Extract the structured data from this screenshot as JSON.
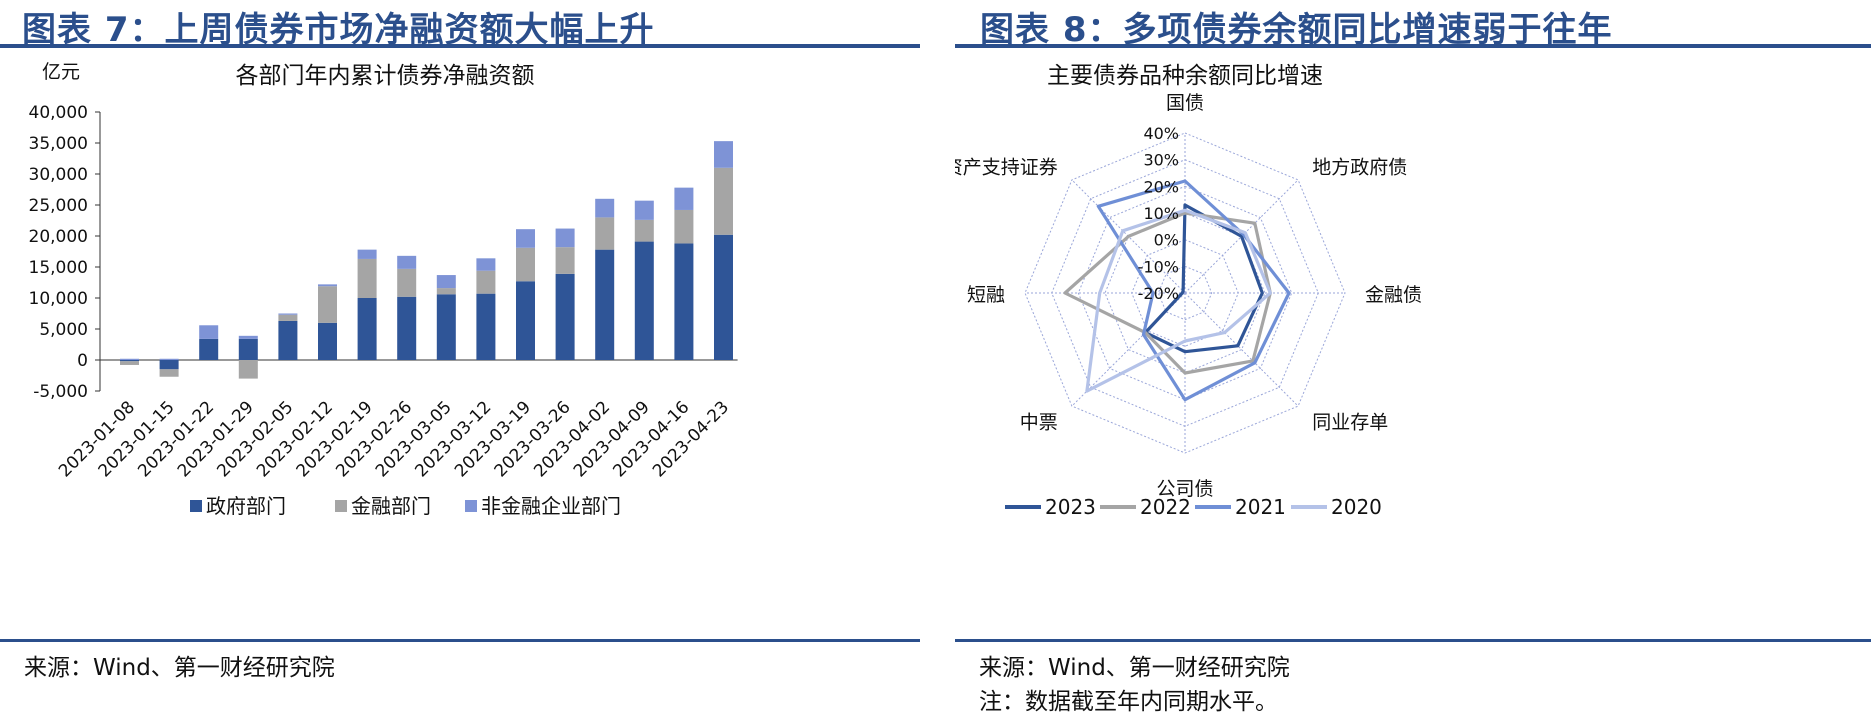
{
  "colors": {
    "accent": "#2b4f8c",
    "gov": "#2f5597",
    "fin": "#a5a5a5",
    "nonfin": "#7e93d6",
    "s2023": "#2f5597",
    "s2022": "#a5a5a5",
    "s2021": "#6f8fd6",
    "s2020": "#b4c2e8"
  },
  "left": {
    "figure_title": "图表 7：上周债券市场净融资额大幅上升",
    "source": "来源：Wind、第一财经研究院"
  },
  "right": {
    "figure_title": "图表 8：多项债券余额同比增速弱于往年",
    "source": "来源：Wind、第一财经研究院",
    "note": "注：数据截至年内同期水平。"
  },
  "chart_data": [
    {
      "type": "bar",
      "stacked": true,
      "title": "各部门年内累计债券净融资额",
      "ylabel": "亿元",
      "ylim": [
        -5000,
        40000
      ],
      "yticks": [
        -5000,
        0,
        5000,
        10000,
        15000,
        20000,
        25000,
        30000,
        35000,
        40000
      ],
      "ytick_labels": [
        "-5,000",
        "0",
        "5,000",
        "10,000",
        "15,000",
        "20,000",
        "25,000",
        "30,000",
        "35,000",
        "40,000"
      ],
      "categories": [
        "2023-01-08",
        "2023-01-15",
        "2023-01-22",
        "2023-01-29",
        "2023-02-05",
        "2023-02-12",
        "2023-02-19",
        "2023-02-26",
        "2023-03-05",
        "2023-03-12",
        "2023-03-19",
        "2023-03-26",
        "2023-04-02",
        "2023-04-09",
        "2023-04-16",
        "2023-04-23"
      ],
      "series": [
        {
          "name": "政府部门",
          "values": [
            -200,
            -1500,
            3400,
            3400,
            6300,
            6000,
            10000,
            10200,
            10600,
            10700,
            12700,
            13900,
            17800,
            19100,
            18800,
            20200
          ]
        },
        {
          "name": "金融部门",
          "values": [
            -600,
            -1200,
            0,
            -3000,
            1000,
            5900,
            6300,
            4500,
            1000,
            3700,
            5400,
            4300,
            5200,
            3500,
            5400,
            10800
          ]
        },
        {
          "name": "非金融企业部门",
          "values": [
            200,
            200,
            2200,
            500,
            200,
            300,
            1500,
            2100,
            2100,
            2000,
            3000,
            3000,
            3000,
            3100,
            3600,
            4300
          ]
        }
      ],
      "grid": false,
      "legend_position": "bottom"
    },
    {
      "type": "radar",
      "title": "主要债券品种余额同比增速",
      "categories": [
        "国债",
        "地方政府债",
        "金融债",
        "同业存单",
        "公司债",
        "中票",
        "短融",
        "资产支持证券"
      ],
      "rlim": [
        -20,
        40
      ],
      "rticks": [
        -20,
        -10,
        0,
        10,
        20,
        30,
        40
      ],
      "rtick_labels": [
        "-20%",
        "-10%",
        "0%",
        "10%",
        "20%",
        "30%",
        "40%"
      ],
      "series": [
        {
          "name": "2023",
          "values": [
            13,
            10,
            9,
            8,
            2,
            1,
            -19,
            -19
          ]
        },
        {
          "name": "2022",
          "values": [
            10,
            17,
            12,
            16,
            10,
            1,
            25,
            10
          ]
        },
        {
          "name": "2021",
          "values": [
            22,
            11,
            19,
            17,
            20,
            2,
            -8,
            26
          ]
        },
        {
          "name": "2020",
          "values": [
            11,
            12,
            12,
            1,
            -2,
            32,
            12,
            13
          ]
        }
      ],
      "grid": true,
      "legend_position": "bottom"
    }
  ]
}
